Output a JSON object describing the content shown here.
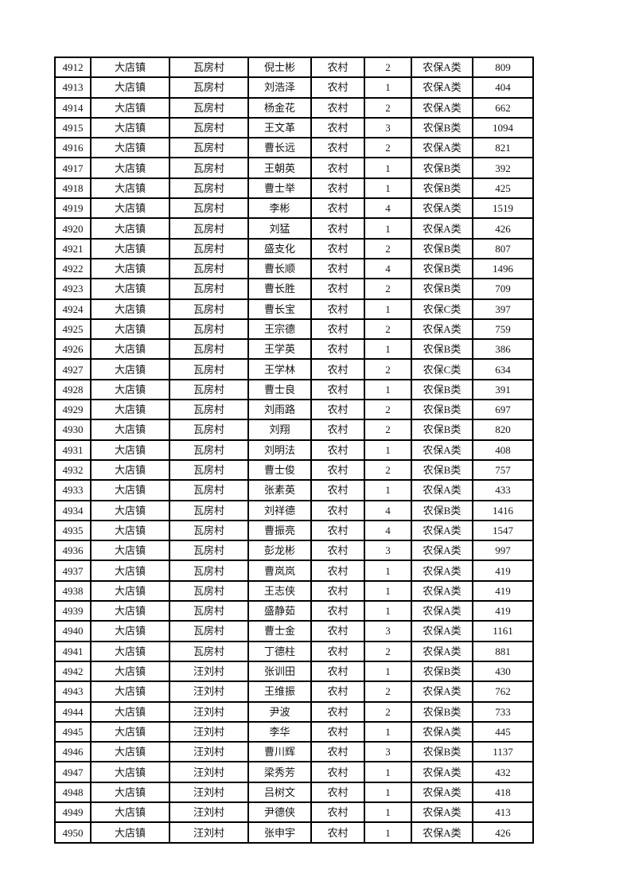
{
  "table": {
    "rows": [
      [
        "4912",
        "大店镇",
        "瓦房村",
        "倪士彬",
        "农村",
        "2",
        "农保A类",
        "809"
      ],
      [
        "4913",
        "大店镇",
        "瓦房村",
        "刘浩泽",
        "农村",
        "1",
        "农保A类",
        "404"
      ],
      [
        "4914",
        "大店镇",
        "瓦房村",
        "杨金花",
        "农村",
        "2",
        "农保A类",
        "662"
      ],
      [
        "4915",
        "大店镇",
        "瓦房村",
        "王文革",
        "农村",
        "3",
        "农保B类",
        "1094"
      ],
      [
        "4916",
        "大店镇",
        "瓦房村",
        "曹长远",
        "农村",
        "2",
        "农保A类",
        "821"
      ],
      [
        "4917",
        "大店镇",
        "瓦房村",
        "王朝英",
        "农村",
        "1",
        "农保B类",
        "392"
      ],
      [
        "4918",
        "大店镇",
        "瓦房村",
        "曹士举",
        "农村",
        "1",
        "农保B类",
        "425"
      ],
      [
        "4919",
        "大店镇",
        "瓦房村",
        "李彬",
        "农村",
        "4",
        "农保A类",
        "1519"
      ],
      [
        "4920",
        "大店镇",
        "瓦房村",
        "刘猛",
        "农村",
        "1",
        "农保A类",
        "426"
      ],
      [
        "4921",
        "大店镇",
        "瓦房村",
        "盛支化",
        "农村",
        "2",
        "农保B类",
        "807"
      ],
      [
        "4922",
        "大店镇",
        "瓦房村",
        "曹长顺",
        "农村",
        "4",
        "农保B类",
        "1496"
      ],
      [
        "4923",
        "大店镇",
        "瓦房村",
        "曹长胜",
        "农村",
        "2",
        "农保B类",
        "709"
      ],
      [
        "4924",
        "大店镇",
        "瓦房村",
        "曹长宝",
        "农村",
        "1",
        "农保C类",
        "397"
      ],
      [
        "4925",
        "大店镇",
        "瓦房村",
        "王宗德",
        "农村",
        "2",
        "农保A类",
        "759"
      ],
      [
        "4926",
        "大店镇",
        "瓦房村",
        "王学英",
        "农村",
        "1",
        "农保B类",
        "386"
      ],
      [
        "4927",
        "大店镇",
        "瓦房村",
        "王学林",
        "农村",
        "2",
        "农保C类",
        "634"
      ],
      [
        "4928",
        "大店镇",
        "瓦房村",
        "曹士良",
        "农村",
        "1",
        "农保B类",
        "391"
      ],
      [
        "4929",
        "大店镇",
        "瓦房村",
        "刘雨路",
        "农村",
        "2",
        "农保B类",
        "697"
      ],
      [
        "4930",
        "大店镇",
        "瓦房村",
        "刘翔",
        "农村",
        "2",
        "农保B类",
        "820"
      ],
      [
        "4931",
        "大店镇",
        "瓦房村",
        "刘明法",
        "农村",
        "1",
        "农保A类",
        "408"
      ],
      [
        "4932",
        "大店镇",
        "瓦房村",
        "曹士俊",
        "农村",
        "2",
        "农保B类",
        "757"
      ],
      [
        "4933",
        "大店镇",
        "瓦房村",
        "张素英",
        "农村",
        "1",
        "农保A类",
        "433"
      ],
      [
        "4934",
        "大店镇",
        "瓦房村",
        "刘祥德",
        "农村",
        "4",
        "农保B类",
        "1416"
      ],
      [
        "4935",
        "大店镇",
        "瓦房村",
        "曹振亮",
        "农村",
        "4",
        "农保A类",
        "1547"
      ],
      [
        "4936",
        "大店镇",
        "瓦房村",
        "彭龙彬",
        "农村",
        "3",
        "农保A类",
        "997"
      ],
      [
        "4937",
        "大店镇",
        "瓦房村",
        "曹岚岚",
        "农村",
        "1",
        "农保A类",
        "419"
      ],
      [
        "4938",
        "大店镇",
        "瓦房村",
        "王志侠",
        "农村",
        "1",
        "农保A类",
        "419"
      ],
      [
        "4939",
        "大店镇",
        "瓦房村",
        "盛静茹",
        "农村",
        "1",
        "农保A类",
        "419"
      ],
      [
        "4940",
        "大店镇",
        "瓦房村",
        "曹士金",
        "农村",
        "3",
        "农保A类",
        "1161"
      ],
      [
        "4941",
        "大店镇",
        "瓦房村",
        "丁德柱",
        "农村",
        "2",
        "农保A类",
        "881"
      ],
      [
        "4942",
        "大店镇",
        "汪刘村",
        "张训田",
        "农村",
        "1",
        "农保B类",
        "430"
      ],
      [
        "4943",
        "大店镇",
        "汪刘村",
        "王维振",
        "农村",
        "2",
        "农保A类",
        "762"
      ],
      [
        "4944",
        "大店镇",
        "汪刘村",
        "尹波",
        "农村",
        "2",
        "农保B类",
        "733"
      ],
      [
        "4945",
        "大店镇",
        "汪刘村",
        "李华",
        "农村",
        "1",
        "农保A类",
        "445"
      ],
      [
        "4946",
        "大店镇",
        "汪刘村",
        "曹川辉",
        "农村",
        "3",
        "农保B类",
        "1137"
      ],
      [
        "4947",
        "大店镇",
        "汪刘村",
        "梁秀芳",
        "农村",
        "1",
        "农保A类",
        "432"
      ],
      [
        "4948",
        "大店镇",
        "汪刘村",
        "吕树文",
        "农村",
        "1",
        "农保A类",
        "418"
      ],
      [
        "4949",
        "大店镇",
        "汪刘村",
        "尹德侠",
        "农村",
        "1",
        "农保A类",
        "413"
      ],
      [
        "4950",
        "大店镇",
        "汪刘村",
        "张申宇",
        "农村",
        "1",
        "农保A类",
        "426"
      ]
    ]
  }
}
